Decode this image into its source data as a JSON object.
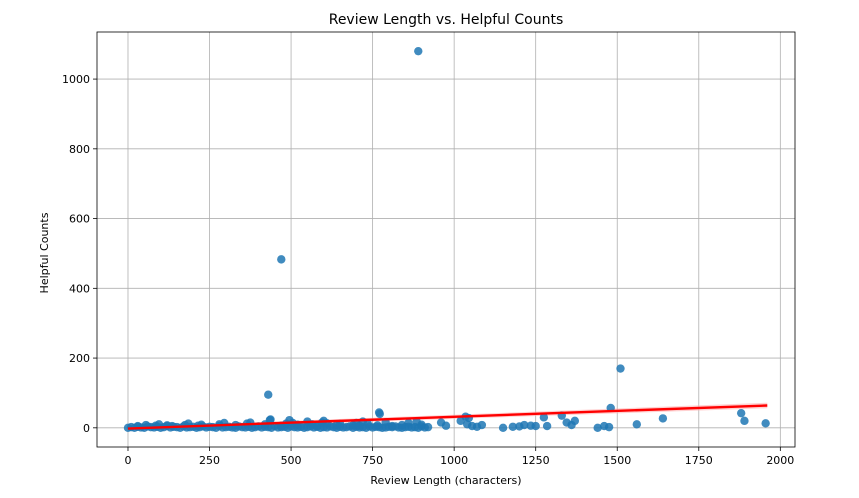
{
  "chart_data": {
    "type": "scatter",
    "title": "Review Length vs. Helpful Counts",
    "xlabel": "Review Length (characters)",
    "ylabel": "Helpful Counts",
    "xlim": [
      -95,
      2045
    ],
    "ylim": [
      -55,
      1135
    ],
    "xticks": [
      0,
      250,
      500,
      750,
      1000,
      1250,
      1500,
      1750,
      2000
    ],
    "yticks": [
      0,
      200,
      400,
      600,
      800,
      1000
    ],
    "xtick_labels": [
      "0",
      "250",
      "500",
      "750",
      "1000",
      "1250",
      "1500",
      "1750",
      "2000"
    ],
    "ytick_labels": [
      "0",
      "200",
      "400",
      "600",
      "800",
      "1000"
    ],
    "grid": true,
    "colors": {
      "points": "#1f77b4",
      "regression": "#ff0000",
      "ci_band": "#ffb3b3"
    },
    "regression": {
      "x": [
        0,
        1960
      ],
      "y": [
        -2,
        64
      ]
    },
    "confidence_band": {
      "x": [
        0,
        1960
      ],
      "lower": [
        -6,
        56
      ],
      "upper": [
        2,
        72
      ]
    },
    "points": {
      "x": [
        0,
        10,
        20,
        30,
        40,
        50,
        60,
        70,
        80,
        90,
        100,
        110,
        120,
        130,
        140,
        150,
        160,
        170,
        180,
        190,
        200,
        210,
        220,
        230,
        240,
        250,
        260,
        270,
        280,
        290,
        300,
        310,
        320,
        330,
        340,
        350,
        360,
        370,
        380,
        390,
        400,
        410,
        420,
        430,
        440,
        450,
        460,
        470,
        480,
        490,
        500,
        510,
        520,
        530,
        540,
        550,
        560,
        570,
        580,
        590,
        600,
        610,
        620,
        630,
        640,
        650,
        660,
        670,
        680,
        690,
        700,
        710,
        720,
        730,
        740,
        750,
        760,
        770,
        780,
        790,
        800,
        810,
        820,
        830,
        840,
        850,
        860,
        870,
        880,
        890,
        900,
        910,
        920,
        30,
        55,
        85,
        95,
        120,
        135,
        175,
        185,
        215,
        225,
        280,
        295,
        330,
        365,
        375,
        420,
        430,
        435,
        437,
        470,
        485,
        495,
        505,
        520,
        550,
        565,
        580,
        595,
        600,
        610,
        640,
        650,
        690,
        700,
        710,
        720,
        735,
        765,
        770,
        772,
        790,
        810,
        840,
        860,
        885,
        900,
        960,
        975,
        1020,
        1035,
        1040,
        1045,
        1055,
        1070,
        1085,
        1150,
        1180,
        1200,
        1215,
        1235,
        1250,
        1275,
        1285,
        1330,
        1345,
        1360,
        1370,
        1440,
        1460,
        1475,
        1480,
        1510,
        1560,
        1640,
        1880,
        1890,
        1955,
        470,
        890
      ],
      "y": [
        0,
        2,
        0,
        3,
        1,
        0,
        4,
        2,
        1,
        3,
        0,
        2,
        5,
        1,
        3,
        2,
        0,
        4,
        1,
        2,
        3,
        0,
        2,
        4,
        1,
        3,
        2,
        0,
        5,
        1,
        2,
        3,
        1,
        0,
        4,
        2,
        1,
        3,
        0,
        2,
        4,
        1,
        3,
        2,
        0,
        5,
        1,
        2,
        3,
        0,
        4,
        2,
        1,
        3,
        0,
        2,
        4,
        1,
        3,
        0,
        2,
        1,
        4,
        2,
        0,
        3,
        1,
        2,
        4,
        0,
        3,
        1,
        2,
        0,
        4,
        1,
        3,
        2,
        0,
        1,
        3,
        2,
        4,
        1,
        0,
        2,
        3,
        1,
        2,
        0,
        4,
        1,
        2,
        5,
        8,
        6,
        10,
        7,
        5,
        8,
        12,
        6,
        9,
        10,
        14,
        8,
        12,
        15,
        10,
        95,
        22,
        24,
        6,
        12,
        22,
        14,
        9,
        18,
        10,
        6,
        15,
        20,
        13,
        8,
        11,
        7,
        14,
        6,
        18,
        12,
        7,
        44,
        40,
        16,
        5,
        8,
        14,
        18,
        9,
        15,
        6,
        20,
        32,
        10,
        28,
        5,
        3,
        8,
        0,
        3,
        4,
        8,
        6,
        5,
        30,
        5,
        35,
        15,
        8,
        20,
        0,
        5,
        2,
        57,
        170,
        10,
        27,
        42,
        20,
        13,
        483,
        1080
      ]
    }
  }
}
